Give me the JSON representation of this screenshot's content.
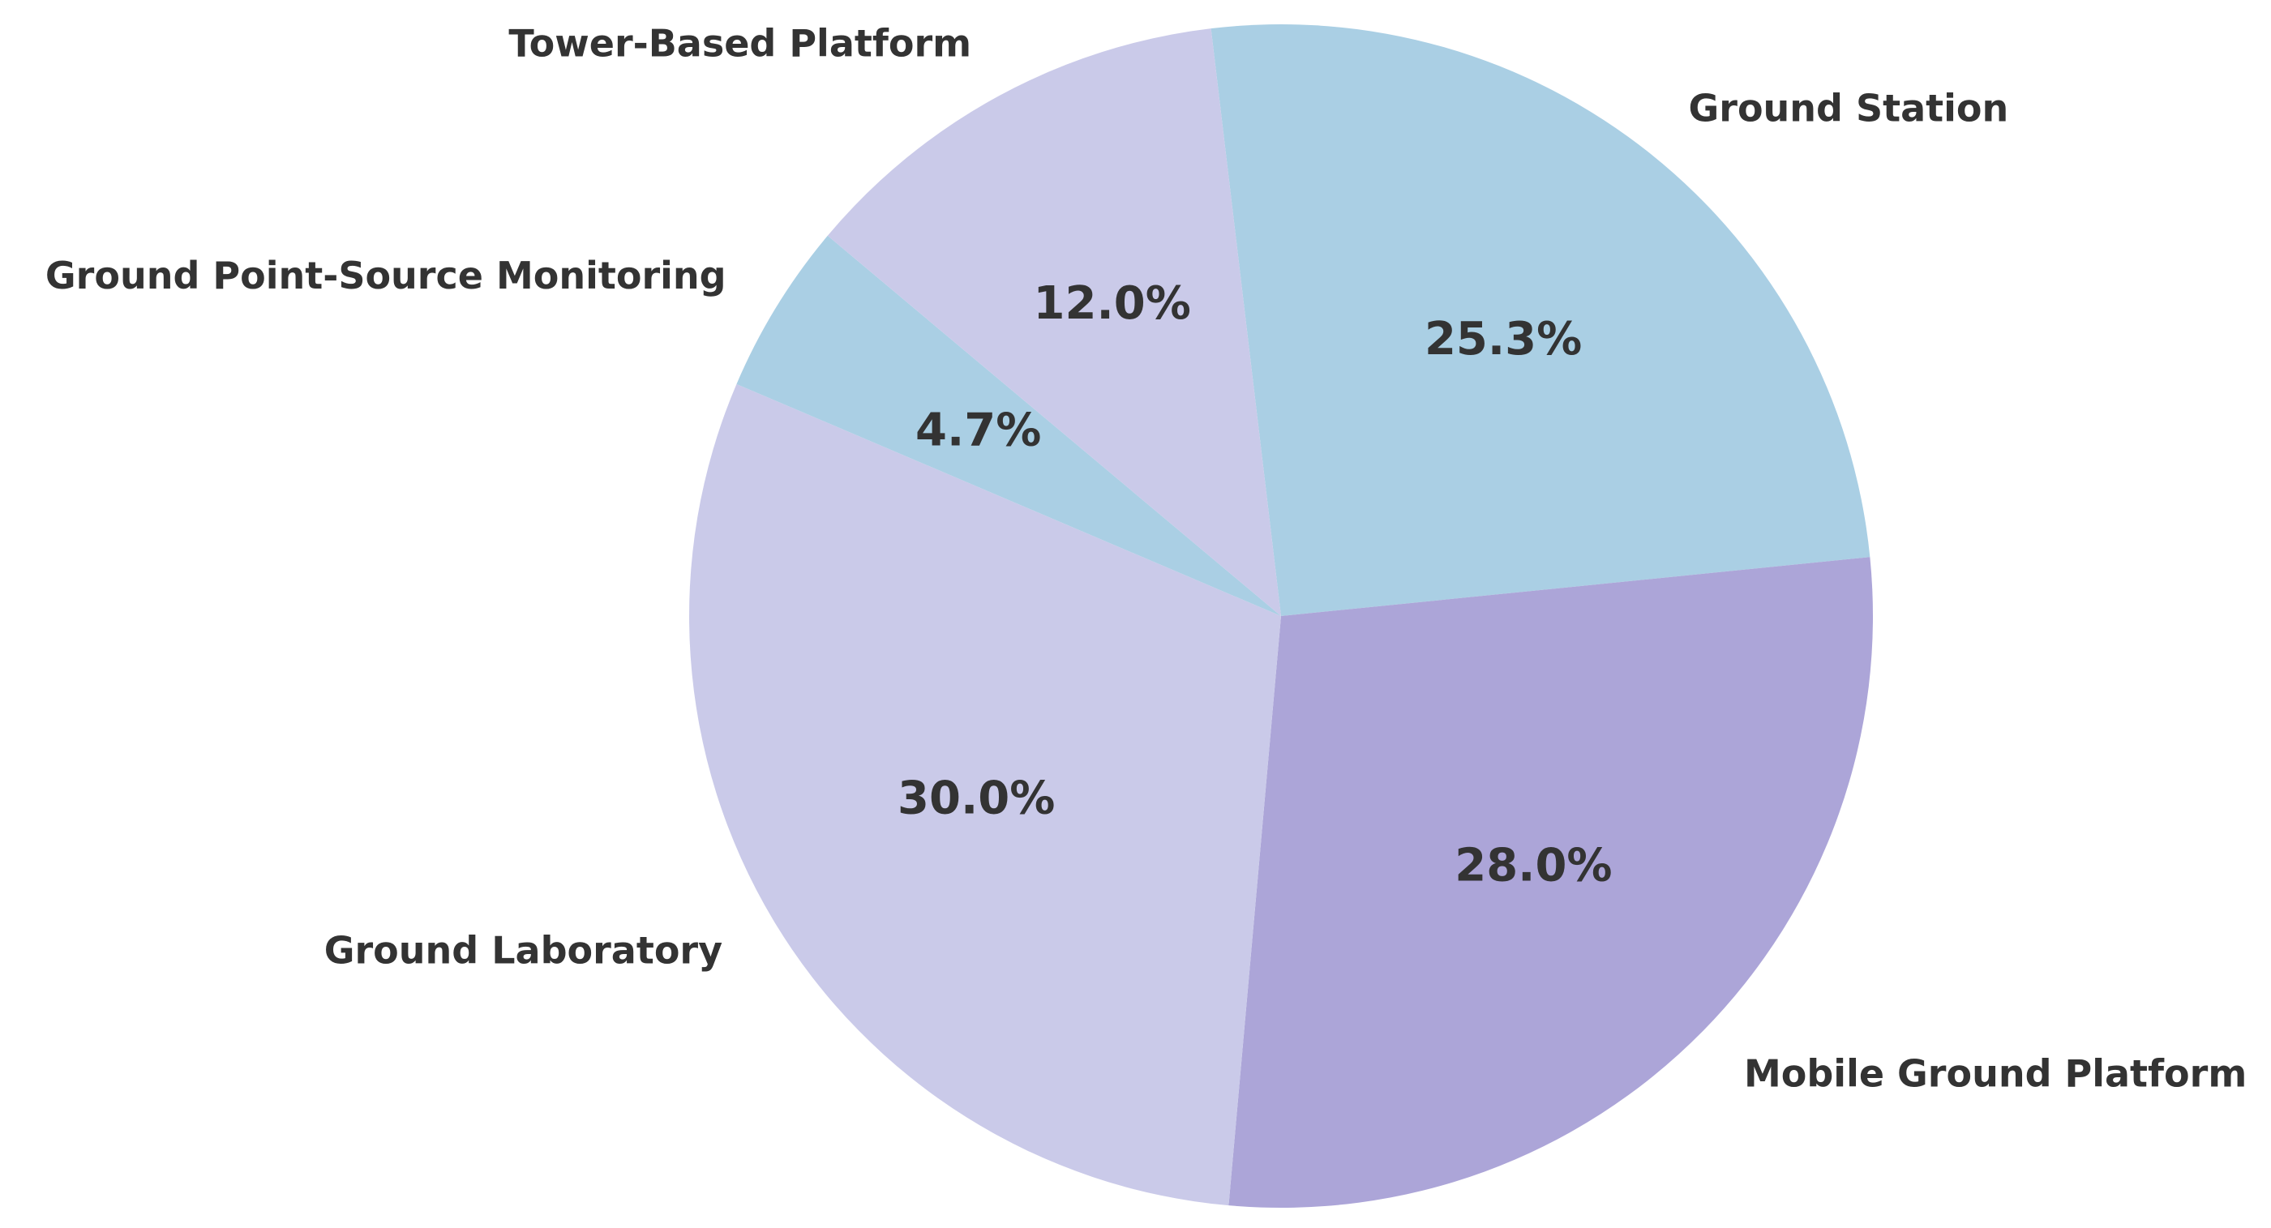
{
  "chart_data": {
    "type": "pie",
    "title": "",
    "start_angle_deg": 96.8,
    "direction": "clockwise",
    "slices": [
      {
        "label": "Ground Station",
        "value": 25.3,
        "pct_label": "25.3%",
        "color": "#aacfe4"
      },
      {
        "label": "Mobile Ground Platform",
        "value": 28.0,
        "pct_label": "28.0%",
        "color": "#aca5d8"
      },
      {
        "label": "Ground Laboratory",
        "value": 30.0,
        "pct_label": "30.0%",
        "color": "#cacae9"
      },
      {
        "label": "Ground Point-Source Monitoring",
        "value": 4.7,
        "pct_label": "4.7%",
        "color": "#aacfe4"
      },
      {
        "label": "Tower-Based Platform",
        "value": 12.0,
        "pct_label": "12.0%",
        "color": "#cacae9"
      }
    ]
  }
}
